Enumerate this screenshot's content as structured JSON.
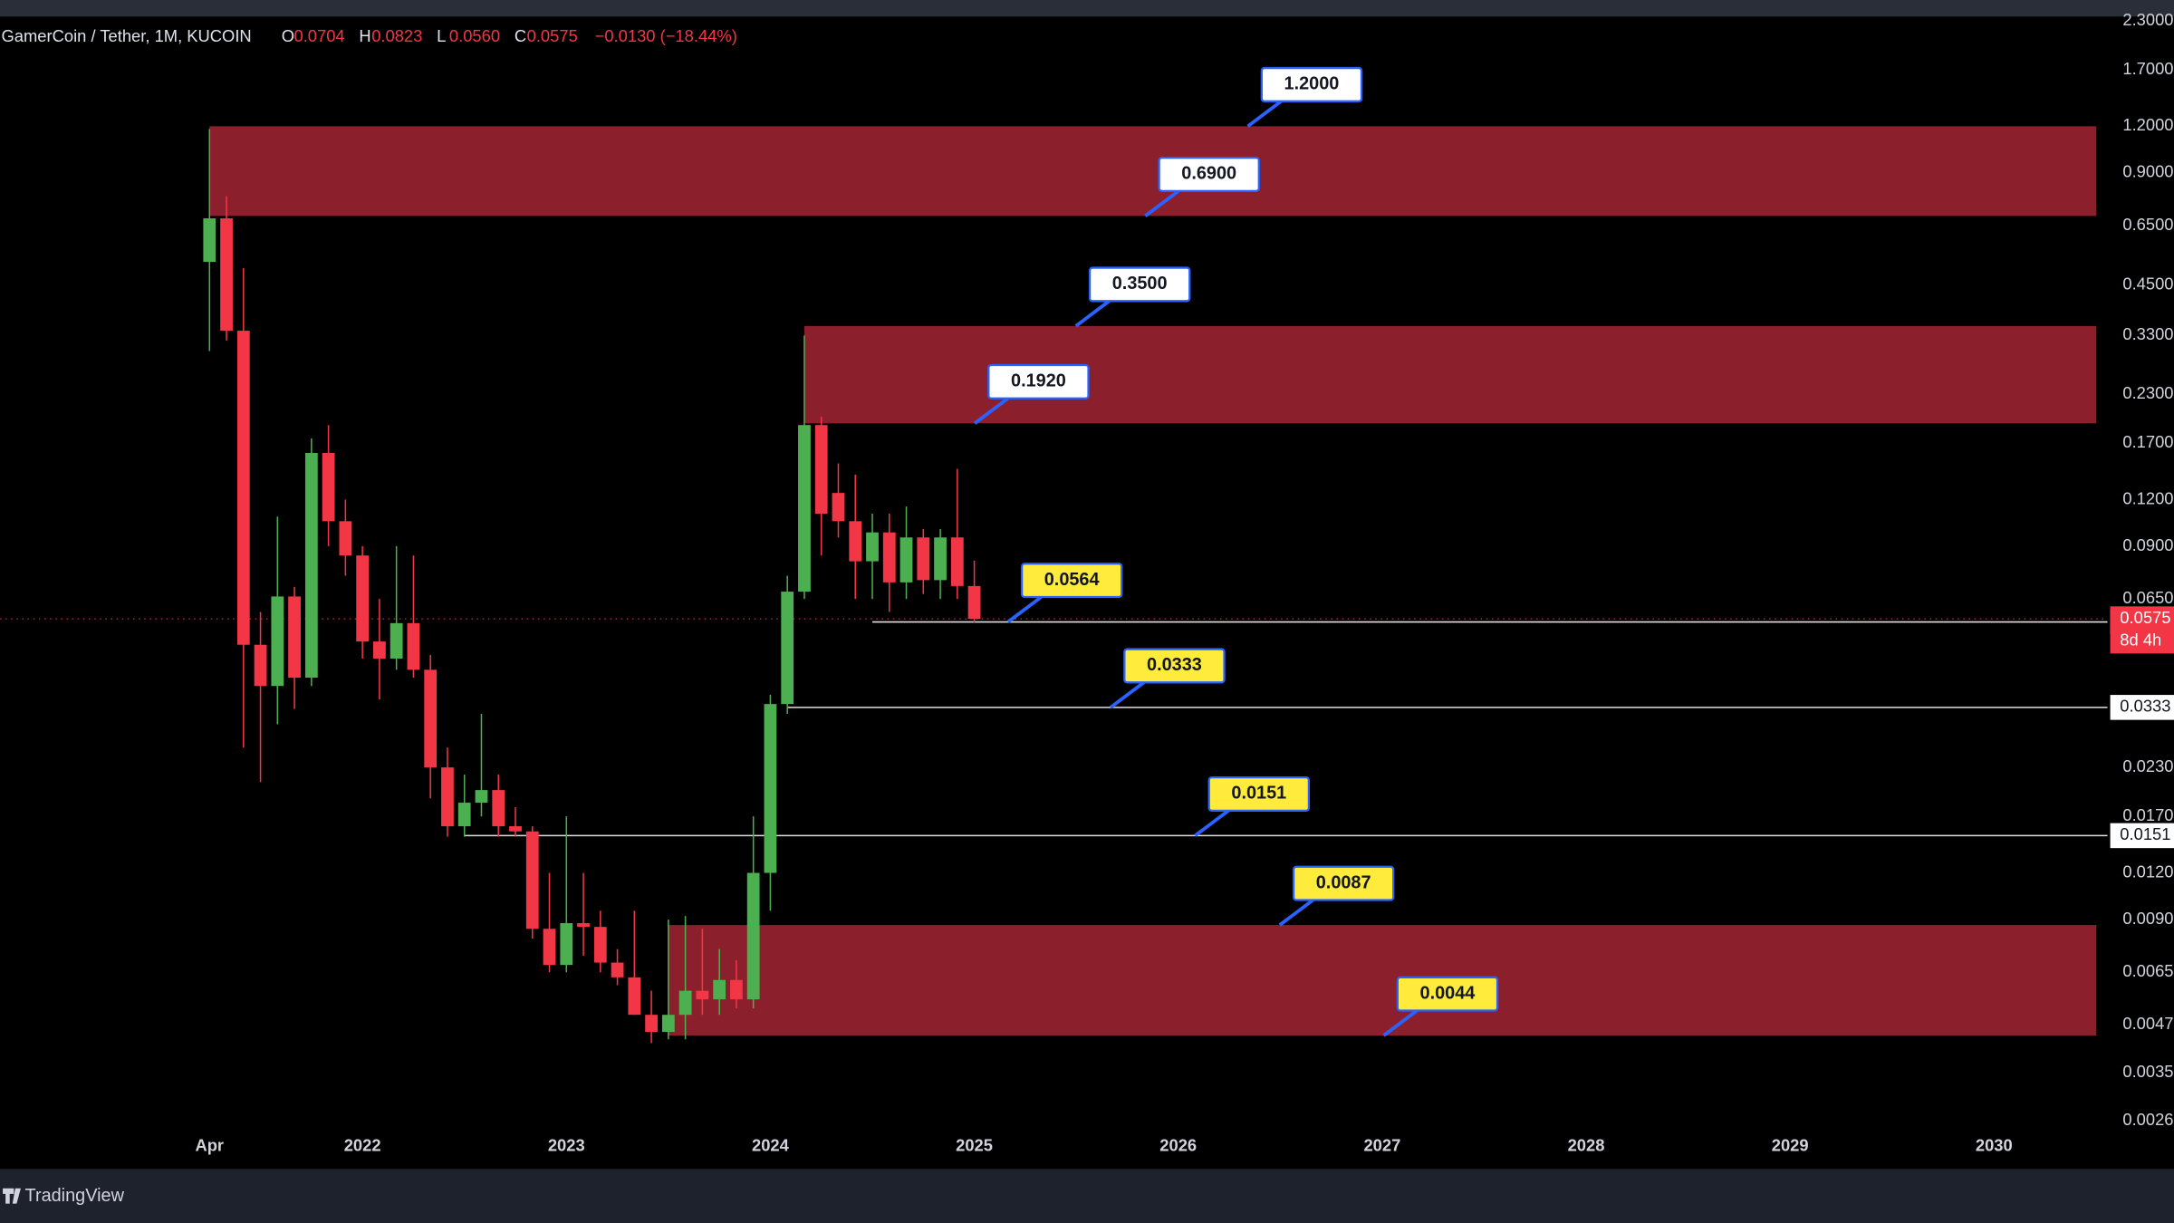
{
  "chart_data": {
    "type": "candlestick",
    "header": {
      "symbol": "GamerCoin / Tether, 1M, KUCOIN",
      "ohlc": [
        {
          "key": "O",
          "text": "0.0704"
        },
        {
          "key": "H",
          "text": "0.0823"
        },
        {
          "key": "L",
          "text": "0.0560"
        },
        {
          "key": "C",
          "text": "0.0575"
        }
      ],
      "change": "−0.0130 (−18.44%)"
    },
    "brand": "TradingView",
    "log_scale": true,
    "grid": false,
    "up_color": "#4caf50",
    "down_color": "#f23645",
    "zone_color": "#8c1f2c",
    "x": [
      "2021-04",
      "2021-05",
      "2021-06",
      "2021-07",
      "2021-08",
      "2021-09",
      "2021-10",
      "2021-11",
      "2021-12",
      "2022-01",
      "2022-02",
      "2022-03",
      "2022-04",
      "2022-05",
      "2022-06",
      "2022-07",
      "2022-08",
      "2022-09",
      "2022-10",
      "2022-11",
      "2022-12",
      "2023-01",
      "2023-02",
      "2023-03",
      "2023-04",
      "2023-05",
      "2023-06",
      "2023-07",
      "2023-08",
      "2023-09",
      "2023-10",
      "2023-11",
      "2023-12",
      "2024-01",
      "2024-02",
      "2024-03",
      "2024-04",
      "2024-05",
      "2024-06",
      "2024-07",
      "2024-08",
      "2024-09",
      "2024-10",
      "2024-11",
      "2024-12",
      "2025-01"
    ],
    "open": [
      0.52,
      0.68,
      0.34,
      0.049,
      0.038,
      0.066,
      0.04,
      0.16,
      0.105,
      0.085,
      0.05,
      0.045,
      0.056,
      0.042,
      0.023,
      0.016,
      0.0185,
      0.02,
      0.016,
      0.0155,
      0.0085,
      0.0068,
      0.0088,
      0.0086,
      0.0069,
      0.0063,
      0.005,
      0.0045,
      0.005,
      0.0058,
      0.0055,
      0.0062,
      0.0055,
      0.012,
      0.034,
      0.068,
      0.19,
      0.125,
      0.105,
      0.082,
      0.098,
      0.072,
      0.095,
      0.073,
      0.095,
      0.0704
    ],
    "high": [
      1.18,
      0.78,
      0.5,
      0.06,
      0.108,
      0.07,
      0.175,
      0.19,
      0.12,
      0.09,
      0.065,
      0.09,
      0.085,
      0.046,
      0.026,
      0.022,
      0.032,
      0.022,
      0.018,
      0.016,
      0.012,
      0.017,
      0.012,
      0.0095,
      0.0075,
      0.0095,
      0.0058,
      0.009,
      0.0092,
      0.0085,
      0.0075,
      0.007,
      0.017,
      0.036,
      0.075,
      0.33,
      0.2,
      0.15,
      0.14,
      0.11,
      0.11,
      0.115,
      0.1,
      0.1,
      0.145,
      0.0823
    ],
    "low": [
      0.3,
      0.32,
      0.026,
      0.021,
      0.03,
      0.033,
      0.038,
      0.09,
      0.075,
      0.045,
      0.035,
      0.042,
      0.04,
      0.019,
      0.015,
      0.015,
      0.017,
      0.015,
      0.015,
      0.008,
      0.0065,
      0.0065,
      0.0072,
      0.0065,
      0.006,
      0.005,
      0.0042,
      0.0043,
      0.0043,
      0.005,
      0.005,
      0.0052,
      0.0052,
      0.0095,
      0.032,
      0.065,
      0.085,
      0.095,
      0.065,
      0.065,
      0.06,
      0.065,
      0.067,
      0.065,
      0.065,
      0.056
    ],
    "close": [
      0.68,
      0.34,
      0.049,
      0.038,
      0.066,
      0.04,
      0.16,
      0.105,
      0.085,
      0.05,
      0.045,
      0.056,
      0.042,
      0.023,
      0.016,
      0.0185,
      0.02,
      0.016,
      0.0155,
      0.0085,
      0.0068,
      0.0088,
      0.0086,
      0.0069,
      0.0063,
      0.005,
      0.0045,
      0.005,
      0.0058,
      0.0055,
      0.0062,
      0.0055,
      0.012,
      0.034,
      0.068,
      0.19,
      0.11,
      0.105,
      0.082,
      0.098,
      0.072,
      0.095,
      0.073,
      0.095,
      0.0704,
      0.0575
    ],
    "xlim": [
      "2020-04",
      "2030-08"
    ],
    "xticks": [
      {
        "value": "2021-04",
        "label": "Apr"
      },
      {
        "value": "2022-01",
        "label": "2022"
      },
      {
        "value": "2023-01",
        "label": "2023"
      },
      {
        "value": "2024-01",
        "label": "2024"
      },
      {
        "value": "2025-01",
        "label": "2025"
      },
      {
        "value": "2026-01",
        "label": "2026"
      },
      {
        "value": "2027-01",
        "label": "2027"
      },
      {
        "value": "2028-01",
        "label": "2028"
      },
      {
        "value": "2029-01",
        "label": "2029"
      },
      {
        "value": "2030-01",
        "label": "2030"
      }
    ],
    "ylim": [
      0.002,
      2.4
    ],
    "yticks": [
      {
        "value": 2.3,
        "label": "2.3000"
      },
      {
        "value": 1.7,
        "label": "1.7000"
      },
      {
        "value": 1.2,
        "label": "1.2000"
      },
      {
        "value": 0.9,
        "label": "0.9000"
      },
      {
        "value": 0.65,
        "label": "0.6500"
      },
      {
        "value": 0.45,
        "label": "0.4500"
      },
      {
        "value": 0.33,
        "label": "0.3300"
      },
      {
        "value": 0.23,
        "label": "0.2300"
      },
      {
        "value": 0.17,
        "label": "0.1700"
      },
      {
        "value": 0.12,
        "label": "0.1200"
      },
      {
        "value": 0.09,
        "label": "0.0900"
      },
      {
        "value": 0.065,
        "label": "0.0650"
      },
      {
        "value": 0.023,
        "label": "0.0230"
      },
      {
        "value": 0.017,
        "label": "0.0170"
      },
      {
        "value": 0.012,
        "label": "0.0120"
      },
      {
        "value": 0.009,
        "label": "0.0090"
      },
      {
        "value": 0.0065,
        "label": "0.0065"
      },
      {
        "value": 0.0047,
        "label": "0.0047"
      },
      {
        "value": 0.0035,
        "label": "0.0035"
      },
      {
        "value": 0.0026,
        "label": "0.0026"
      }
    ],
    "last_price": {
      "value": 0.0575,
      "label": "0.0575",
      "countdown": "8d 4h"
    },
    "zones": [
      {
        "start": "2021-04",
        "low": {
          "value": 0.69,
          "label": "0.6900"
        },
        "high": {
          "value": 1.2,
          "label": "1.2000"
        },
        "callout_color": "#ffffff"
      },
      {
        "start": "2024-03",
        "low": {
          "value": 0.192,
          "label": "0.1920"
        },
        "high": {
          "value": 0.35,
          "label": "0.3500"
        },
        "callout_color": "#ffffff"
      },
      {
        "start": "2023-07",
        "low": {
          "value": 0.0044,
          "label": "0.0044"
        },
        "high": {
          "value": 0.0087,
          "label": "0.0087"
        },
        "callout_color": "#ffeb3b"
      }
    ],
    "lines": [
      {
        "start": "2024-07",
        "value": 0.0564,
        "label": "0.0564",
        "callout_color": "#ffeb3b"
      },
      {
        "start": "2024-02",
        "value": 0.0333,
        "label": "0.0333",
        "callout_color": "#ffeb3b"
      },
      {
        "start": "2022-07",
        "value": 0.0151,
        "label": "0.0151",
        "callout_color": "#ffeb3b"
      }
    ]
  }
}
